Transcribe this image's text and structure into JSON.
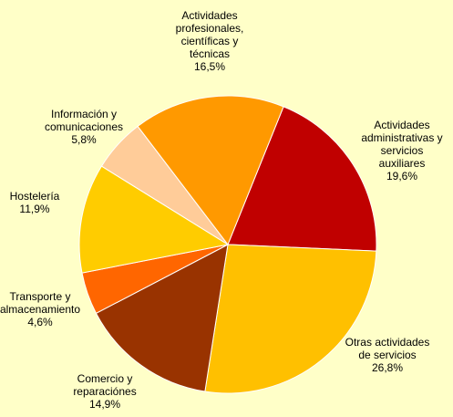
{
  "chart_data": {
    "type": "pie",
    "categories": [
      "Actividades\nadministrativas y\nservicios\nauxiliares",
      "Otras actividades\nde servicios",
      "Comercio y\nreparaciónes",
      "Transporte y\nalmacenamiento",
      "Hostelería",
      "Información y\ncomunicaciones",
      "Actividades\nprofesionales,\ncientíficas y\ntécnicas"
    ],
    "values": [
      19.6,
      26.8,
      14.9,
      4.6,
      11.9,
      5.8,
      16.5
    ],
    "value_labels": [
      "19,6%",
      "26,8%",
      "14,9%",
      "4,6%",
      "11,9%",
      "5,8%",
      "16,5%"
    ],
    "colors": [
      "#c00000",
      "#ffc000",
      "#993300",
      "#ff6600",
      "#ffcc00",
      "#ffcc99",
      "#ff9900"
    ]
  }
}
